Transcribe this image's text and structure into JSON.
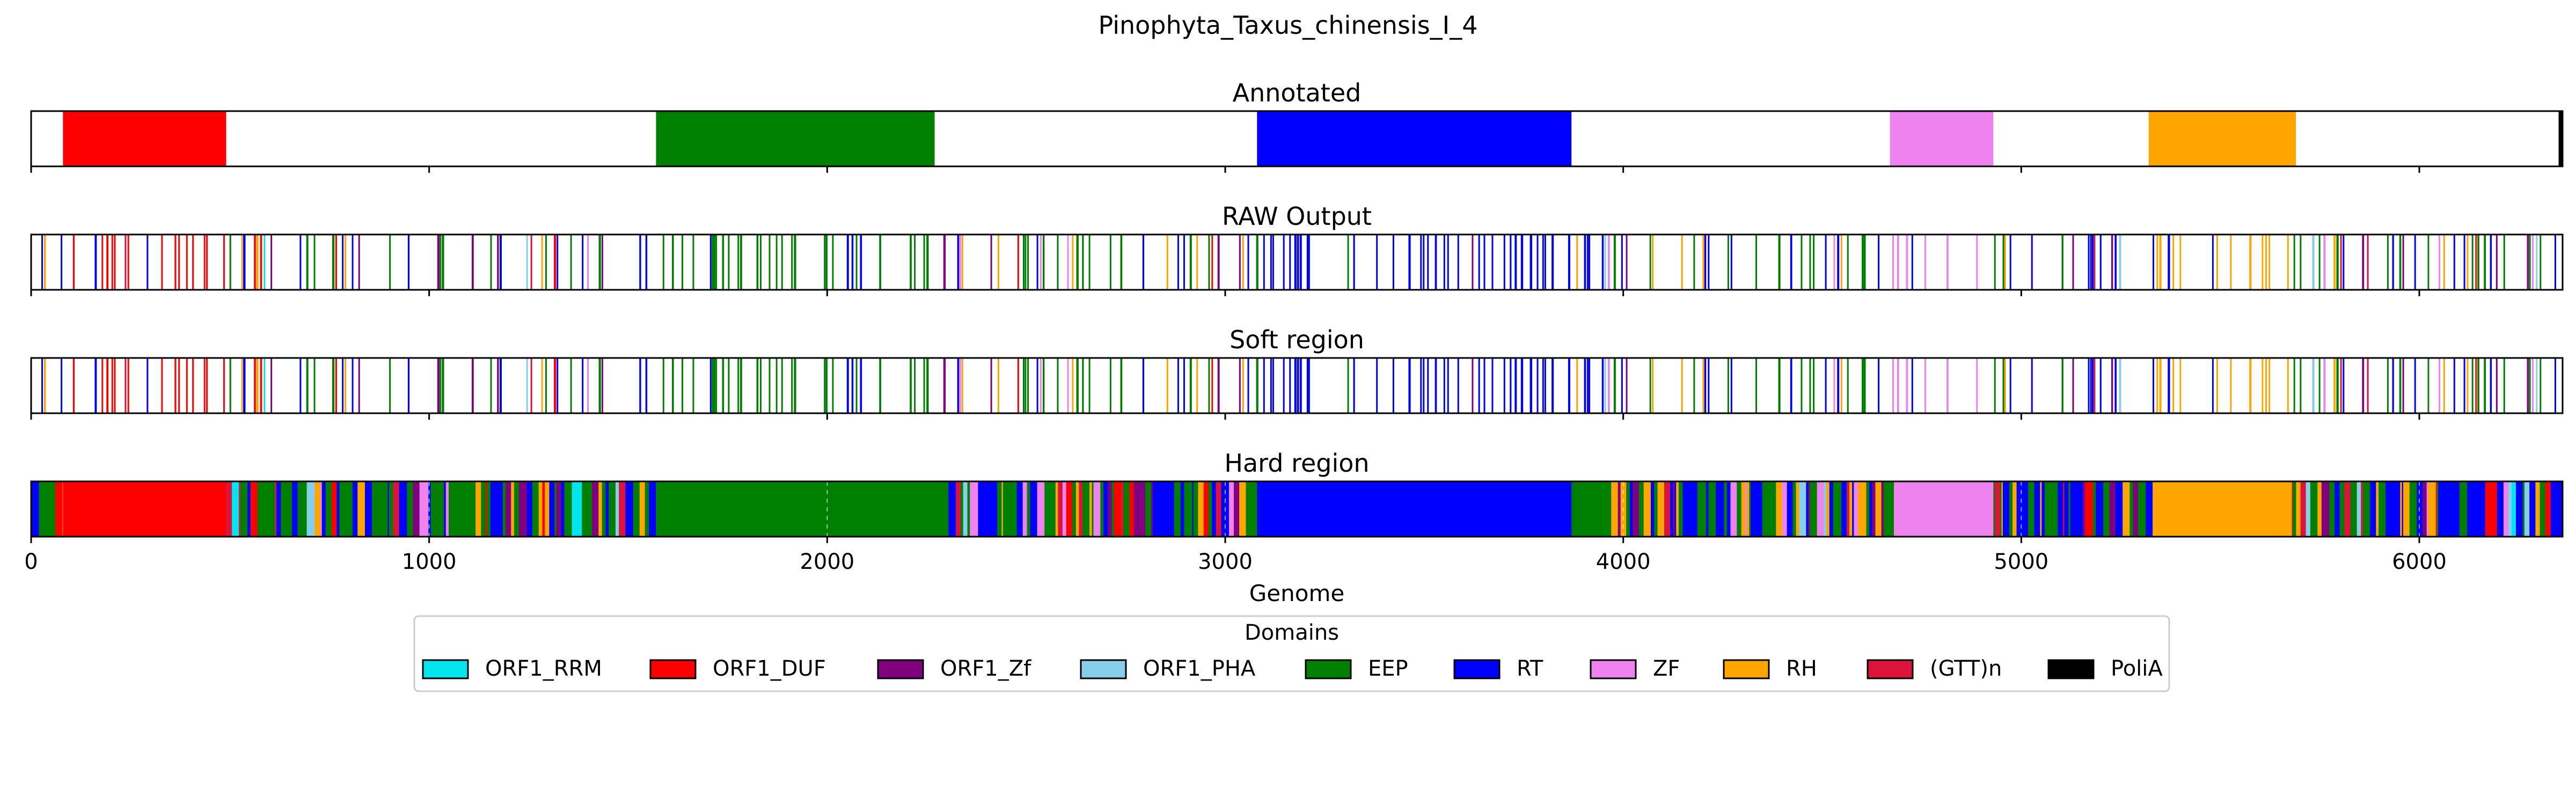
{
  "title": "Pinophyta_Taxus_chinensis_I_4",
  "chart_data": {
    "type": "bar",
    "xlabel": "Genome",
    "xlim": [
      0,
      6360
    ],
    "xticks": [
      0,
      1000,
      2000,
      3000,
      4000,
      5000,
      6000
    ],
    "xtick_labels": [
      "0",
      "1000",
      "2000",
      "3000",
      "4000",
      "5000",
      "6000"
    ],
    "colors": {
      "ORF1_RRM": "#00e5ee",
      "ORF1_DUF": "#ff0000",
      "ORF1_Zf": "#800080",
      "ORF1_PHA": "#87ceeb",
      "EEP": "#008000",
      "RT": "#0000ff",
      "ZF": "#ee82ee",
      "RH": "#ffa500",
      "(GTT)n": "#dc143c",
      "PoliA": "#000000"
    },
    "legend": {
      "title": "Domains",
      "placement": "below",
      "entries": [
        "ORF1_RRM",
        "ORF1_DUF",
        "ORF1_Zf",
        "ORF1_PHA",
        "EEP",
        "RT",
        "ZF",
        "RH",
        "(GTT)n",
        "PoliA"
      ]
    },
    "tracks": [
      {
        "title": "Annotated",
        "segments": [
          {
            "domain": "ORF1_DUF",
            "start": 80,
            "end": 490
          },
          {
            "domain": "EEP",
            "start": 1570,
            "end": 2270
          },
          {
            "domain": "RT",
            "start": 3080,
            "end": 3870
          },
          {
            "domain": "ZF",
            "start": 4670,
            "end": 4930
          },
          {
            "domain": "RH",
            "start": 5320,
            "end": 5690
          },
          {
            "domain": "PoliA",
            "start": 6350,
            "end": 6360
          }
        ]
      },
      {
        "title": "RAW Output",
        "segments": [
          {
            "domain": "ORF1_DUF",
            "start": 80,
            "end": 490
          },
          {
            "domain": "EEP",
            "start": 1570,
            "end": 2270
          },
          {
            "domain": "RT",
            "start": 3080,
            "end": 3870
          },
          {
            "domain": "ZF",
            "start": 4670,
            "end": 4930
          },
          {
            "domain": "RH",
            "start": 5320,
            "end": 5690
          }
        ]
      },
      {
        "title": "Soft region",
        "segments": [
          {
            "domain": "ORF1_DUF",
            "start": 80,
            "end": 490
          },
          {
            "domain": "EEP",
            "start": 1570,
            "end": 2270
          },
          {
            "domain": "RT",
            "start": 3080,
            "end": 3870
          },
          {
            "domain": "ZF",
            "start": 4670,
            "end": 4930
          },
          {
            "domain": "RH",
            "start": 5320,
            "end": 5690
          }
        ]
      },
      {
        "title": "Hard region",
        "segments": [
          {
            "domain": "RT",
            "start": 0,
            "end": 20
          },
          {
            "domain": "EEP",
            "start": 20,
            "end": 40
          },
          {
            "domain": "ORF1_DUF",
            "start": 80,
            "end": 490
          },
          {
            "domain": "EEP",
            "start": 1570,
            "end": 2270
          },
          {
            "domain": "RT",
            "start": 3080,
            "end": 3870
          },
          {
            "domain": "EEP",
            "start": 3870,
            "end": 3960
          },
          {
            "domain": "ZF",
            "start": 4680,
            "end": 4930
          },
          {
            "domain": "RH",
            "start": 5330,
            "end": 5680
          },
          {
            "domain": "RT",
            "start": 6330,
            "end": 6360
          }
        ]
      }
    ]
  }
}
